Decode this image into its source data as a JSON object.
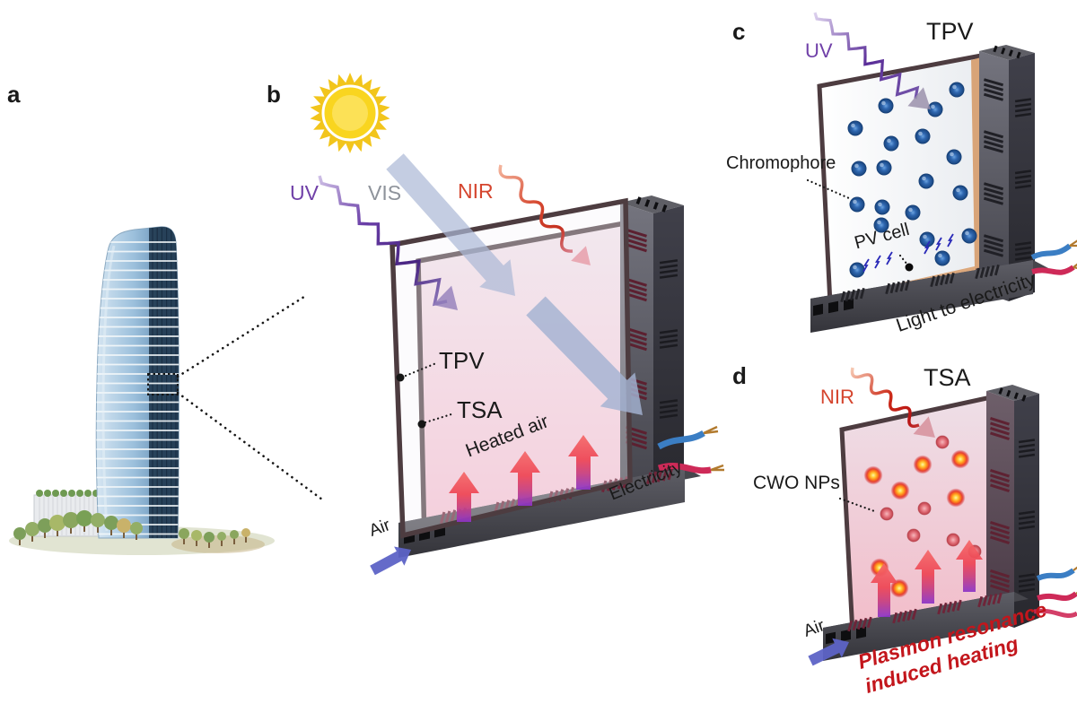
{
  "figure": {
    "description": "Smart window schematic: building-integrated TPV/TSA double-pane window harvesting UV light as electricity and NIR light as heat",
    "panels": {
      "a": {
        "letter": "a"
      },
      "b": {
        "letter": "b",
        "uv": "UV",
        "vis": "VIS",
        "nir": "NIR",
        "tpv": "TPV",
        "tsa": "TSA",
        "heated_air": "Heated air",
        "air": "Air",
        "electricity": "Electricity"
      },
      "c": {
        "letter": "c",
        "title": "TPV",
        "uv": "UV",
        "chromophore": "Chromophore",
        "pv_cell": "PV cell",
        "caption": "Light to electricity"
      },
      "d": {
        "letter": "d",
        "title": "TSA",
        "nir": "NIR",
        "cwo": "CWO NPs",
        "air": "Air",
        "caption_line1": "Plasmon resonance",
        "caption_line2": "induced heating"
      }
    },
    "icons": {
      "sun": "sun-icon",
      "uv_wave": "zigzag-wave-arrow",
      "vis_arrow": "wide-translucent-arrow",
      "nir_wave": "sine-wave-arrow",
      "heated_air_arrows": "upward-gradient-arrows",
      "air_arrow": "blue-inlet-arrow",
      "wires": "blue-red-electrical-wires",
      "lightning": "electricity-bolts"
    },
    "colors": {
      "uv_purple": "#7040a8",
      "vis_gray": "#8e939b",
      "nir_red": "#d5452e",
      "plasmon_red": "#c3161c",
      "frame_brown": "#4d3c40",
      "frame_gray": "#55555c",
      "glass_pink": "#f4bccd",
      "pv_strip_tan": "#d8a478",
      "chromophore_blue": "#2f67b0",
      "cwo_orange": "#ff8820",
      "heated_arrow_red": "#ee4554",
      "heated_arrow_purple": "#8b35c8",
      "air_arrow_blue": "#5d63c6",
      "sun_yellow": "#f9d51f",
      "wire_blue": "#3b7ec4",
      "wire_red": "#ce2a58",
      "building_glass_blue": "#8fb6d8"
    }
  }
}
